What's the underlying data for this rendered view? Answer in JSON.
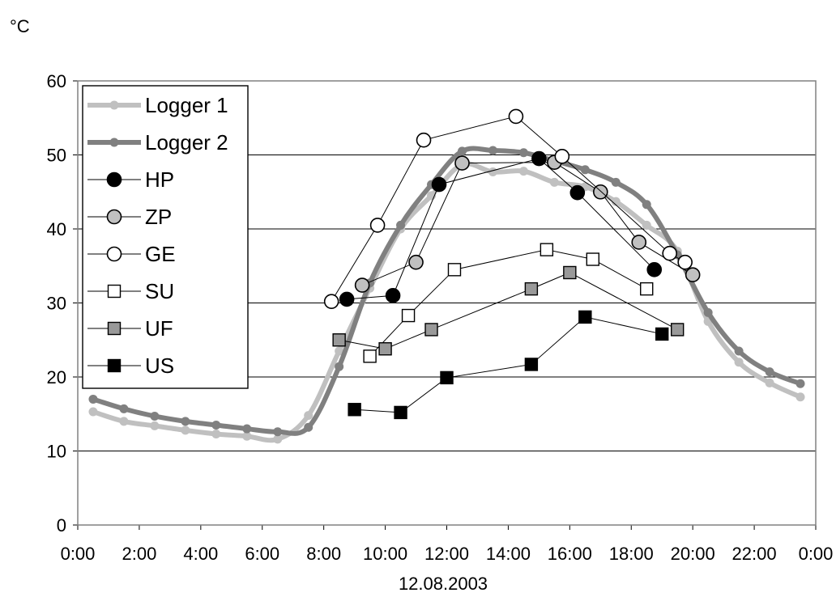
{
  "chart_data": {
    "type": "line",
    "title": "",
    "ylabel": "°C",
    "xlabel": "12.08.2003",
    "ylim": [
      0,
      60
    ],
    "xlim": [
      "0:00",
      "0:00"
    ],
    "y_ticks": [
      "0",
      "10",
      "20",
      "30",
      "40",
      "50",
      "60"
    ],
    "x_ticks": [
      "0:00",
      "2:00",
      "4:00",
      "6:00",
      "8:00",
      "10:00",
      "12:00",
      "14:00",
      "16:00",
      "18:00",
      "20:00",
      "22:00",
      "0:00"
    ],
    "grid": "horizontal",
    "legend_position": "top-left",
    "series": [
      {
        "name": "Logger 1",
        "style": "thick-line-light",
        "color": "#c0c0c0",
        "marker": "dot",
        "points": [
          [
            "0:30",
            15.3
          ],
          [
            "1:30",
            14
          ],
          [
            "2:30",
            13.4
          ],
          [
            "3:30",
            12.8
          ],
          [
            "4:30",
            12.3
          ],
          [
            "5:30",
            12
          ],
          [
            "6:30",
            11.6
          ],
          [
            "7:30",
            14.8
          ],
          [
            "8:30",
            23.5
          ],
          [
            "9:30",
            32
          ],
          [
            "10:30",
            40
          ],
          [
            "11:30",
            44.5
          ],
          [
            "12:30",
            48.7
          ],
          [
            "13:30",
            47.7
          ],
          [
            "14:30",
            47.8
          ],
          [
            "15:30",
            46.3
          ],
          [
            "16:30",
            45.7
          ],
          [
            "17:30",
            43.7
          ],
          [
            "18:30",
            40.5
          ],
          [
            "19:30",
            37
          ],
          [
            "20:30",
            27.5
          ],
          [
            "21:30",
            22
          ],
          [
            "22:30",
            19.2
          ],
          [
            "23:30",
            17.3
          ]
        ]
      },
      {
        "name": "Logger 2",
        "style": "thick-line-dark",
        "color": "#808080",
        "marker": "dot",
        "points": [
          [
            "0:30",
            17
          ],
          [
            "1:30",
            15.7
          ],
          [
            "2:30",
            14.7
          ],
          [
            "3:30",
            14
          ],
          [
            "4:30",
            13.5
          ],
          [
            "5:30",
            13
          ],
          [
            "6:30",
            12.6
          ],
          [
            "7:30",
            13.2
          ],
          [
            "8:30",
            21.4
          ],
          [
            "9:30",
            32.7
          ],
          [
            "10:30",
            40.5
          ],
          [
            "11:30",
            46
          ],
          [
            "12:30",
            50.5
          ],
          [
            "13:30",
            50.6
          ],
          [
            "14:30",
            50.3
          ],
          [
            "15:30",
            49.2
          ],
          [
            "16:30",
            48
          ],
          [
            "17:30",
            46.3
          ],
          [
            "18:30",
            43.3
          ],
          [
            "19:30",
            36.5
          ],
          [
            "20:30",
            28.7
          ],
          [
            "21:30",
            23.5
          ],
          [
            "22:30",
            20.7
          ],
          [
            "23:30",
            19.1
          ]
        ]
      },
      {
        "name": "HP",
        "style": "thin-line",
        "marker": "circle",
        "fill": "#000000",
        "points": [
          [
            "8:45",
            30.5
          ],
          [
            "10:15",
            31
          ],
          [
            "11:45",
            46
          ],
          [
            "15:00",
            49.5
          ],
          [
            "16:15",
            44.9
          ],
          [
            "18:45",
            34.5
          ]
        ]
      },
      {
        "name": "ZP",
        "style": "thin-line",
        "marker": "circle",
        "fill": "#c0c0c0",
        "points": [
          [
            "9:15",
            32.4
          ],
          [
            "11:00",
            35.5
          ],
          [
            "12:30",
            48.9
          ],
          [
            "15:30",
            49
          ],
          [
            "17:00",
            45
          ],
          [
            "18:15",
            38.2
          ],
          [
            "20:00",
            33.8
          ]
        ]
      },
      {
        "name": "GE",
        "style": "thin-line",
        "marker": "circle",
        "fill": "#ffffff",
        "points": [
          [
            "8:15",
            30.2
          ],
          [
            "9:45",
            40.5
          ],
          [
            "11:15",
            52
          ],
          [
            "14:15",
            55.2
          ],
          [
            "15:45",
            49.8
          ],
          [
            "19:15",
            36.7
          ],
          [
            "19:45",
            35.5
          ]
        ]
      },
      {
        "name": "SU",
        "style": "thin-line",
        "marker": "square",
        "fill": "#ffffff",
        "points": [
          [
            "9:30",
            22.8
          ],
          [
            "10:45",
            28.3
          ],
          [
            "12:15",
            34.5
          ],
          [
            "15:15",
            37.2
          ],
          [
            "16:45",
            35.9
          ],
          [
            "18:30",
            31.9
          ]
        ]
      },
      {
        "name": "UF",
        "style": "thin-line",
        "marker": "square",
        "fill": "#999999",
        "points": [
          [
            "8:30",
            25
          ],
          [
            "10:00",
            23.8
          ],
          [
            "11:30",
            26.4
          ],
          [
            "14:45",
            31.9
          ],
          [
            "16:00",
            34.1
          ],
          [
            "19:30",
            26.4
          ]
        ]
      },
      {
        "name": "US",
        "style": "thin-line",
        "marker": "square",
        "fill": "#000000",
        "points": [
          [
            "9:00",
            15.6
          ],
          [
            "10:30",
            15.2
          ],
          [
            "12:00",
            19.9
          ],
          [
            "14:45",
            21.7
          ],
          [
            "16:30",
            28.1
          ],
          [
            "19:00",
            25.8
          ]
        ]
      }
    ]
  }
}
